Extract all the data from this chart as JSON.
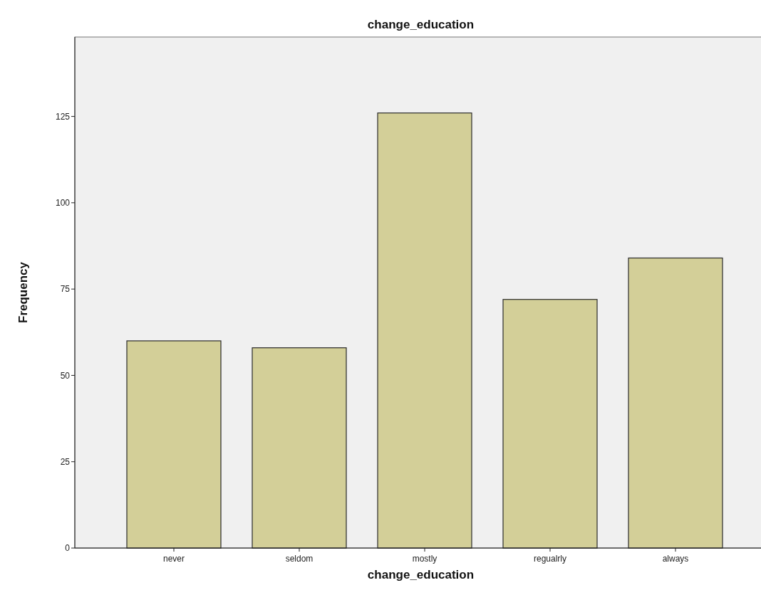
{
  "chart_data": {
    "type": "bar",
    "title": "change_education",
    "xlabel": "change_education",
    "ylabel": "Frequency",
    "categories": [
      "never",
      "seldom",
      "mostly",
      "regualrly",
      "always"
    ],
    "values": [
      60,
      58,
      126,
      72,
      84
    ],
    "color": "#d3cf98",
    "ylim": [
      0,
      148
    ],
    "yticks": [
      0,
      25,
      50,
      75,
      100,
      125
    ],
    "grid": false
  }
}
